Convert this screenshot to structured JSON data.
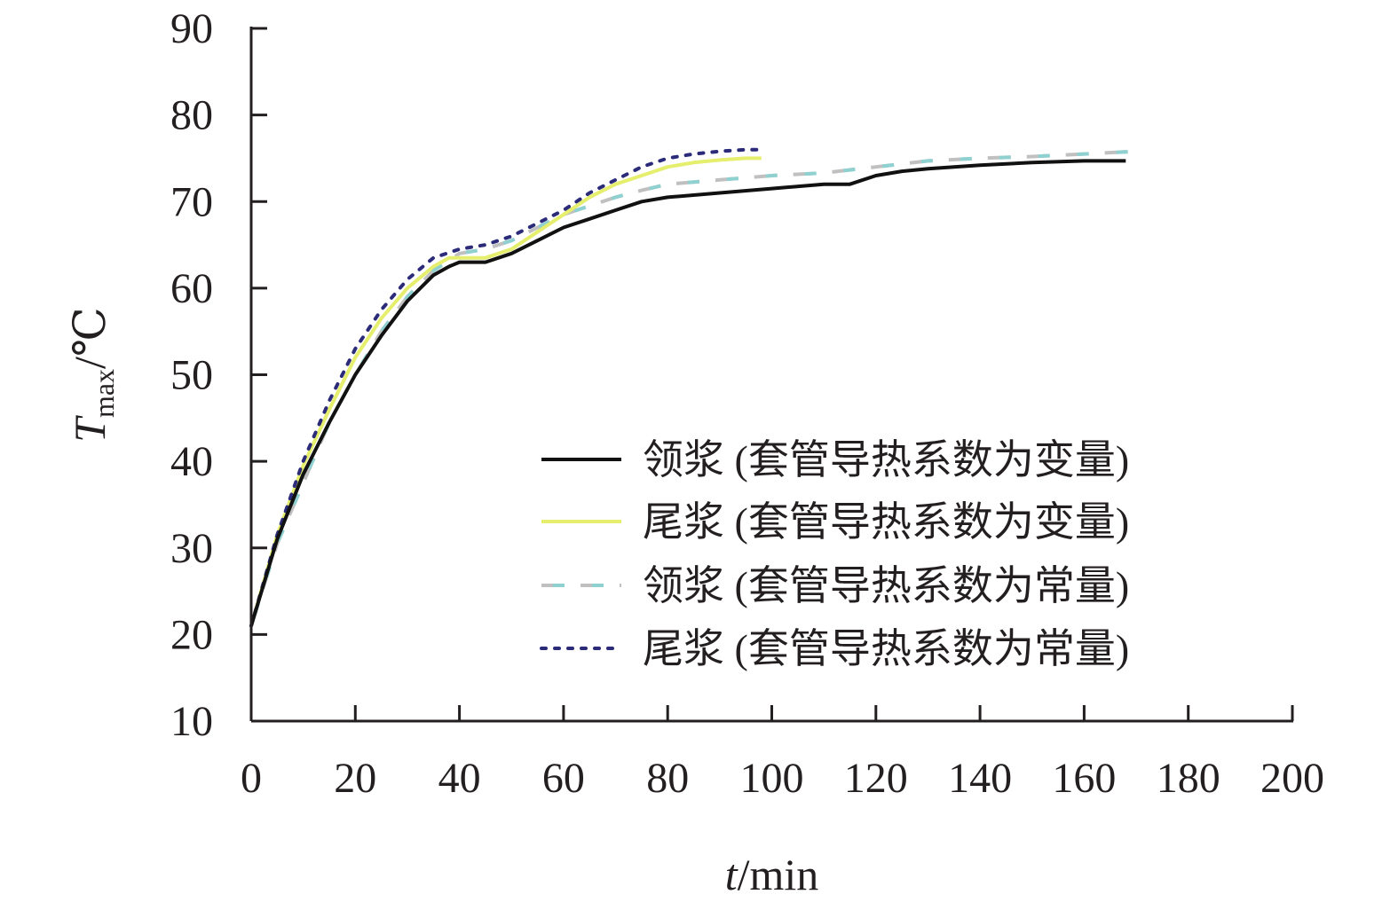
{
  "chart_data": {
    "type": "line",
    "xlabel": {
      "var": "t",
      "unit": "/min"
    },
    "ylabel": {
      "var": "T",
      "sub": "max",
      "unit": "/℃"
    },
    "xlim": [
      0,
      200
    ],
    "ylim": [
      10,
      90
    ],
    "xticks": [
      0,
      20,
      40,
      60,
      80,
      100,
      120,
      140,
      160,
      180,
      200
    ],
    "yticks": [
      10,
      20,
      30,
      40,
      50,
      60,
      70,
      80,
      90
    ],
    "grid": false,
    "legend_position": "lower-right",
    "series": [
      {
        "name": "领浆 (套管导热系数为变量)",
        "style": "solid",
        "color": "#111111",
        "color2": "",
        "x": [
          0,
          5,
          10,
          15,
          20,
          25,
          30,
          35,
          38,
          40,
          45,
          50,
          55,
          60,
          65,
          70,
          75,
          80,
          90,
          100,
          110,
          115,
          120,
          125,
          130,
          140,
          150,
          160,
          168
        ],
        "y": [
          21,
          31,
          38.5,
          44.5,
          50,
          54.5,
          58.5,
          61.5,
          62.5,
          63,
          63,
          64,
          65.5,
          67,
          68,
          69,
          70,
          70.5,
          71,
          71.5,
          72,
          72,
          73,
          73.5,
          73.8,
          74.2,
          74.5,
          74.7,
          74.7
        ]
      },
      {
        "name": "尾浆 (套管导热系数为变量)",
        "style": "solid",
        "color": "#e6ee6e",
        "color2": "",
        "x": [
          0,
          5,
          10,
          15,
          20,
          25,
          30,
          35,
          38,
          40,
          45,
          50,
          55,
          60,
          65,
          70,
          75,
          80,
          85,
          90,
          95,
          98
        ],
        "y": [
          21,
          31.5,
          39.5,
          46,
          52,
          56.5,
          60,
          62.5,
          63.5,
          63.5,
          63.5,
          64.5,
          66.5,
          68.5,
          70.5,
          72,
          73,
          74,
          74.5,
          74.8,
          75,
          75
        ]
      },
      {
        "name": "领浆 (套管导热系数为常量)",
        "style": "dashed",
        "color": "#8fd0d0",
        "color2": "#c0c0c0",
        "x": [
          0,
          5,
          10,
          15,
          20,
          25,
          30,
          35,
          40,
          45,
          50,
          55,
          60,
          65,
          70,
          75,
          80,
          90,
          100,
          110,
          120,
          130,
          140,
          150,
          160,
          170
        ],
        "y": [
          21,
          30.5,
          37.5,
          44.5,
          50,
          55,
          59,
          62,
          64,
          64.5,
          65.5,
          67,
          68.5,
          69.5,
          70.5,
          71.3,
          72,
          72.5,
          73,
          73.3,
          74,
          74.7,
          75,
          75.2,
          75.5,
          75.8
        ]
      },
      {
        "name": "尾浆 (套管导热系数为常量)",
        "style": "dotted",
        "color": "#2b2b7a",
        "color2": "",
        "x": [
          0,
          5,
          10,
          15,
          20,
          25,
          30,
          35,
          40,
          45,
          50,
          55,
          60,
          65,
          70,
          75,
          80,
          85,
          90,
          95,
          98
        ],
        "y": [
          21,
          31.5,
          40,
          47,
          53,
          57.5,
          61,
          63.5,
          64.5,
          65,
          66,
          67.5,
          69,
          71,
          72.5,
          74,
          75,
          75.5,
          75.8,
          76,
          76
        ]
      }
    ]
  }
}
